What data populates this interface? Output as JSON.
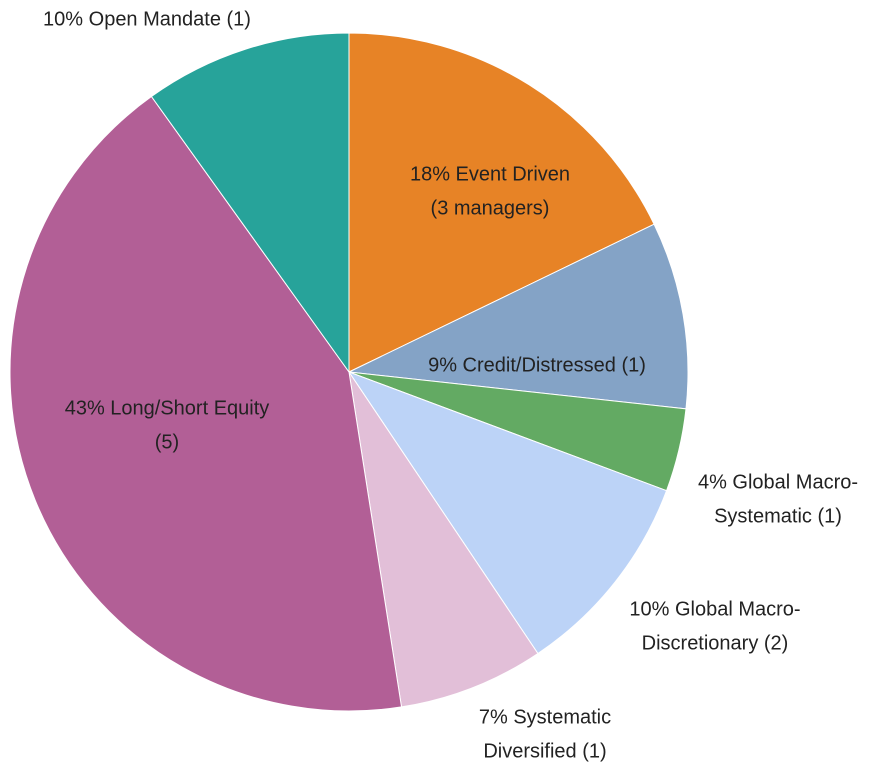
{
  "chart_data": {
    "type": "pie",
    "values": [
      18,
      9,
      4,
      10,
      7,
      43,
      10
    ],
    "value_labels": [
      [
        "18% Event Driven",
        "(3 managers)"
      ],
      [
        "9% Credit/Distressed (1)"
      ],
      [
        "4% Global Macro-",
        "Systematic (1)"
      ],
      [
        "10% Global Macro-",
        "Discretionary (2)"
      ],
      [
        "7% Systematic",
        "Diversified (1)"
      ],
      [
        "43% Long/Short Equity",
        "(5)"
      ],
      [
        "10% Open Mandate (1)"
      ]
    ],
    "colors": [
      "#e78326",
      "#84a3c6",
      "#63aa63",
      "#bcd3f7",
      "#e2bfd8",
      "#b25f96",
      "#27a39a"
    ]
  }
}
